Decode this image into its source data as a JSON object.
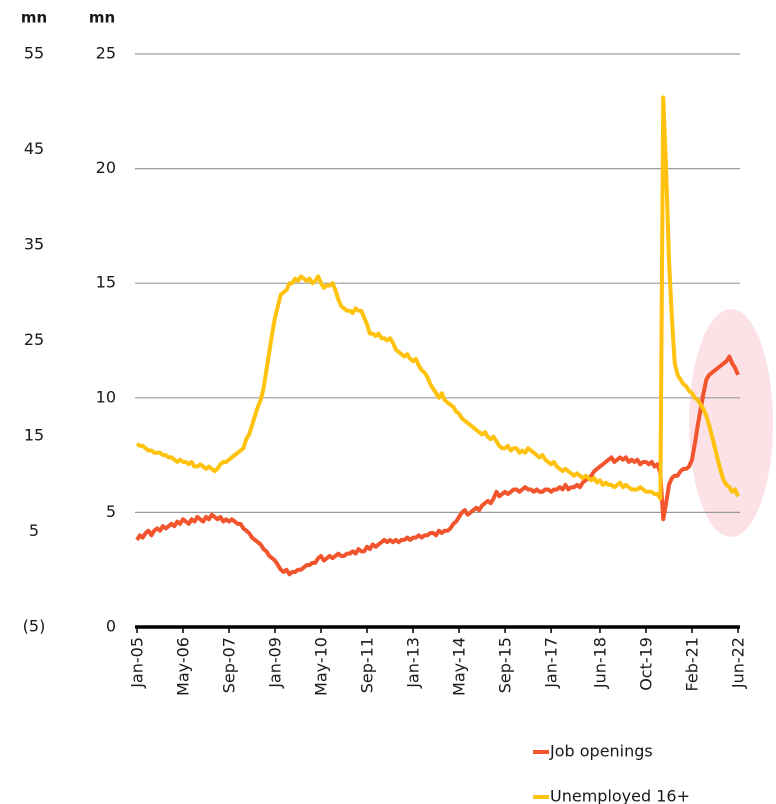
{
  "chart_data": {
    "type": "line",
    "y_label": "mn",
    "y2_label": "mn",
    "categories": [
      "Jan-05",
      null,
      null,
      null,
      null,
      null,
      null,
      null,
      null,
      null,
      null,
      null,
      null,
      null,
      null,
      null,
      "May-06",
      null,
      null,
      null,
      null,
      null,
      null,
      null,
      null,
      null,
      null,
      null,
      null,
      null,
      null,
      null,
      "Sep-07",
      null,
      null,
      null,
      null,
      null,
      null,
      null,
      null,
      null,
      null,
      null,
      null,
      null,
      null,
      null,
      "Jan-09",
      null,
      null,
      null,
      null,
      null,
      null,
      null,
      null,
      null,
      null,
      null,
      null,
      null,
      null,
      null,
      "May-10",
      null,
      null,
      null,
      null,
      null,
      null,
      null,
      null,
      null,
      null,
      null,
      null,
      null,
      null,
      null,
      "Sep-11",
      null,
      null,
      null,
      null,
      null,
      null,
      null,
      null,
      null,
      null,
      null,
      null,
      null,
      null,
      null,
      "Jan-13",
      null,
      null,
      null,
      null,
      null,
      null,
      null,
      null,
      null,
      null,
      null,
      null,
      null,
      null,
      null,
      "May-14",
      null,
      null,
      null,
      null,
      null,
      null,
      null,
      null,
      null,
      null,
      null,
      null,
      null,
      null,
      null,
      "Sep-15",
      null,
      null,
      null,
      null,
      null,
      null,
      null,
      null,
      null,
      null,
      null,
      null,
      null,
      null,
      null,
      "Jan-17",
      null,
      null,
      null,
      null,
      null,
      null,
      null,
      null,
      null,
      null,
      null,
      null,
      null,
      null,
      null,
      null,
      "Jun-18",
      null,
      null,
      null,
      null,
      null,
      null,
      null,
      null,
      null,
      null,
      null,
      null,
      null,
      null,
      null,
      "Oct-19",
      null,
      null,
      null,
      null,
      null,
      null,
      null,
      null,
      null,
      null,
      null,
      null,
      null,
      null,
      null,
      "Feb-21",
      null,
      null,
      null,
      null,
      null,
      null,
      null,
      null,
      null,
      null,
      null,
      null,
      null,
      null,
      null,
      "Jun-22"
    ],
    "series": [
      {
        "name": "Job openings",
        "color": "#f2542d",
        "values": [
          3.8,
          4.0,
          3.9,
          4.1,
          4.2,
          4.0,
          4.2,
          4.3,
          4.2,
          4.4,
          4.3,
          4.4,
          4.5,
          4.4,
          4.6,
          4.5,
          4.7,
          4.6,
          4.5,
          4.7,
          4.6,
          4.8,
          4.7,
          4.6,
          4.8,
          4.7,
          4.9,
          4.8,
          4.7,
          4.8,
          4.6,
          4.7,
          4.6,
          4.7,
          4.6,
          4.5,
          4.5,
          4.3,
          4.2,
          4.1,
          3.9,
          3.8,
          3.7,
          3.6,
          3.4,
          3.3,
          3.1,
          3.0,
          2.9,
          2.7,
          2.5,
          2.4,
          2.5,
          2.3,
          2.4,
          2.4,
          2.5,
          2.5,
          2.6,
          2.7,
          2.7,
          2.8,
          2.8,
          3.0,
          3.1,
          2.9,
          3.0,
          3.1,
          3.0,
          3.1,
          3.2,
          3.1,
          3.1,
          3.2,
          3.2,
          3.3,
          3.2,
          3.4,
          3.3,
          3.3,
          3.5,
          3.4,
          3.6,
          3.5,
          3.6,
          3.7,
          3.8,
          3.7,
          3.8,
          3.7,
          3.8,
          3.7,
          3.8,
          3.8,
          3.9,
          3.8,
          3.9,
          3.9,
          4.0,
          3.9,
          4.0,
          4.0,
          4.1,
          4.1,
          4.0,
          4.2,
          4.1,
          4.2,
          4.2,
          4.3,
          4.5,
          4.6,
          4.8,
          5.0,
          5.1,
          4.9,
          5.0,
          5.1,
          5.2,
          5.1,
          5.3,
          5.4,
          5.5,
          5.4,
          5.6,
          5.9,
          5.7,
          5.8,
          5.9,
          5.8,
          5.9,
          6.0,
          6.0,
          5.9,
          6.0,
          6.1,
          6.0,
          6.0,
          5.9,
          6.0,
          5.9,
          5.9,
          6.0,
          6.0,
          5.9,
          6.0,
          6.0,
          6.1,
          6.0,
          6.2,
          6.0,
          6.1,
          6.1,
          6.2,
          6.1,
          6.3,
          6.4,
          6.5,
          6.6,
          6.8,
          6.9,
          7.0,
          7.1,
          7.2,
          7.3,
          7.4,
          7.2,
          7.3,
          7.4,
          7.3,
          7.4,
          7.2,
          7.3,
          7.2,
          7.3,
          7.1,
          7.2,
          7.2,
          7.1,
          7.2,
          7.0,
          7.1,
          6.7,
          4.7,
          5.4,
          6.2,
          6.5,
          6.6,
          6.6,
          6.8,
          6.9,
          6.9,
          7.0,
          7.3,
          8.0,
          8.8,
          9.5,
          10.2,
          10.8,
          11.0,
          11.1,
          11.2,
          11.3,
          11.4,
          11.5,
          11.6,
          11.8,
          11.5,
          11.3,
          11.0
        ]
      },
      {
        "name": "Unemployed 16+",
        "color": "#ffc20e",
        "values": [
          8.0,
          7.9,
          7.9,
          7.8,
          7.7,
          7.7,
          7.6,
          7.6,
          7.6,
          7.5,
          7.5,
          7.4,
          7.4,
          7.3,
          7.2,
          7.3,
          7.2,
          7.2,
          7.1,
          7.2,
          7.0,
          7.0,
          7.1,
          7.0,
          6.9,
          7.0,
          6.9,
          6.8,
          6.9,
          7.1,
          7.2,
          7.2,
          7.3,
          7.4,
          7.5,
          7.6,
          7.7,
          7.8,
          8.2,
          8.4,
          8.8,
          9.2,
          9.6,
          9.9,
          10.4,
          11.2,
          12.0,
          12.8,
          13.5,
          14.0,
          14.5,
          14.6,
          14.7,
          15.0,
          15.0,
          15.2,
          15.1,
          15.3,
          15.2,
          15.1,
          15.2,
          15.0,
          15.1,
          15.3,
          15.0,
          14.8,
          14.9,
          14.9,
          15.0,
          14.7,
          14.3,
          14.0,
          13.9,
          13.8,
          13.8,
          13.7,
          13.9,
          13.8,
          13.8,
          13.5,
          13.2,
          12.8,
          12.8,
          12.7,
          12.8,
          12.6,
          12.6,
          12.5,
          12.6,
          12.4,
          12.1,
          12.0,
          11.9,
          11.8,
          11.9,
          11.7,
          11.6,
          11.7,
          11.4,
          11.2,
          11.1,
          10.9,
          10.6,
          10.4,
          10.2,
          10.0,
          10.2,
          9.9,
          9.8,
          9.7,
          9.6,
          9.4,
          9.3,
          9.1,
          9.0,
          8.9,
          8.8,
          8.7,
          8.6,
          8.5,
          8.4,
          8.5,
          8.3,
          8.2,
          8.3,
          8.1,
          7.9,
          7.8,
          7.8,
          7.9,
          7.7,
          7.8,
          7.8,
          7.6,
          7.7,
          7.6,
          7.8,
          7.7,
          7.6,
          7.5,
          7.4,
          7.5,
          7.3,
          7.2,
          7.1,
          7.2,
          7.0,
          6.9,
          6.8,
          6.9,
          6.8,
          6.7,
          6.6,
          6.7,
          6.6,
          6.5,
          6.6,
          6.5,
          6.4,
          6.5,
          6.3,
          6.4,
          6.2,
          6.3,
          6.2,
          6.2,
          6.1,
          6.2,
          6.3,
          6.1,
          6.2,
          6.1,
          6.0,
          6.0,
          6.0,
          6.1,
          6.0,
          5.9,
          5.9,
          5.9,
          5.8,
          5.8,
          5.6,
          23.1,
          20.0,
          16.0,
          13.5,
          11.5,
          11.0,
          10.8,
          10.6,
          10.5,
          10.3,
          10.2,
          10.0,
          9.9,
          9.7,
          9.5,
          9.2,
          8.8,
          8.3,
          7.8,
          7.3,
          6.8,
          6.4,
          6.2,
          6.1,
          5.9,
          6.0,
          5.7
        ]
      }
    ],
    "ylim": [
      0,
      25
    ],
    "yticks": [
      0,
      5,
      10,
      15,
      20,
      25
    ],
    "y2lim": [
      -5,
      55
    ],
    "y2ticks": [
      {
        "value": -5,
        "label": "(5)"
      },
      5,
      15,
      25,
      35,
      45,
      55
    ],
    "grid": true,
    "legend": "bottom"
  }
}
